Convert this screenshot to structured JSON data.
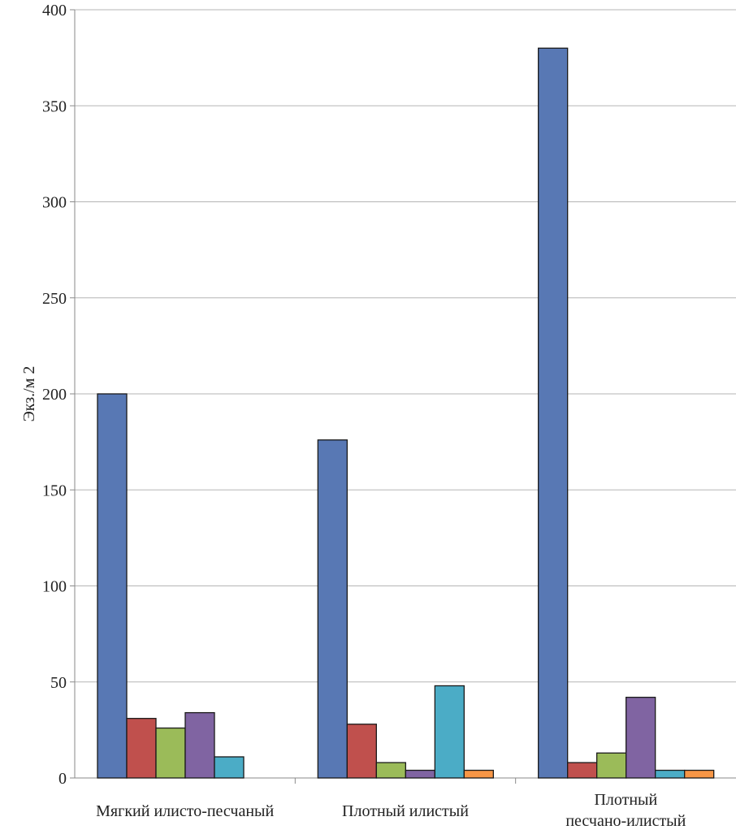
{
  "chart_data": {
    "type": "bar",
    "title": "",
    "xlabel": "",
    "ylabel": "Экз./м 2",
    "ylim": [
      0,
      400
    ],
    "yticks": [
      0,
      50,
      100,
      150,
      200,
      250,
      300,
      350,
      400
    ],
    "grid": true,
    "legend": "none",
    "categories": [
      [
        "Мягкий илисто-песчаный"
      ],
      [
        "Плотный илистый"
      ],
      [
        "Плотный",
        "песчано-илистый"
      ]
    ],
    "series": [
      {
        "color": "#5878b4",
        "values": [
          200,
          176,
          380
        ]
      },
      {
        "color": "#c0504d",
        "values": [
          31,
          28,
          8
        ]
      },
      {
        "color": "#9bbb59",
        "values": [
          26,
          8,
          13
        ]
      },
      {
        "color": "#8064a2",
        "values": [
          34,
          4,
          42
        ]
      },
      {
        "color": "#4bacc6",
        "values": [
          11,
          48,
          4
        ]
      },
      {
        "color": "#f79646",
        "values": [
          0,
          4,
          4
        ]
      }
    ]
  }
}
